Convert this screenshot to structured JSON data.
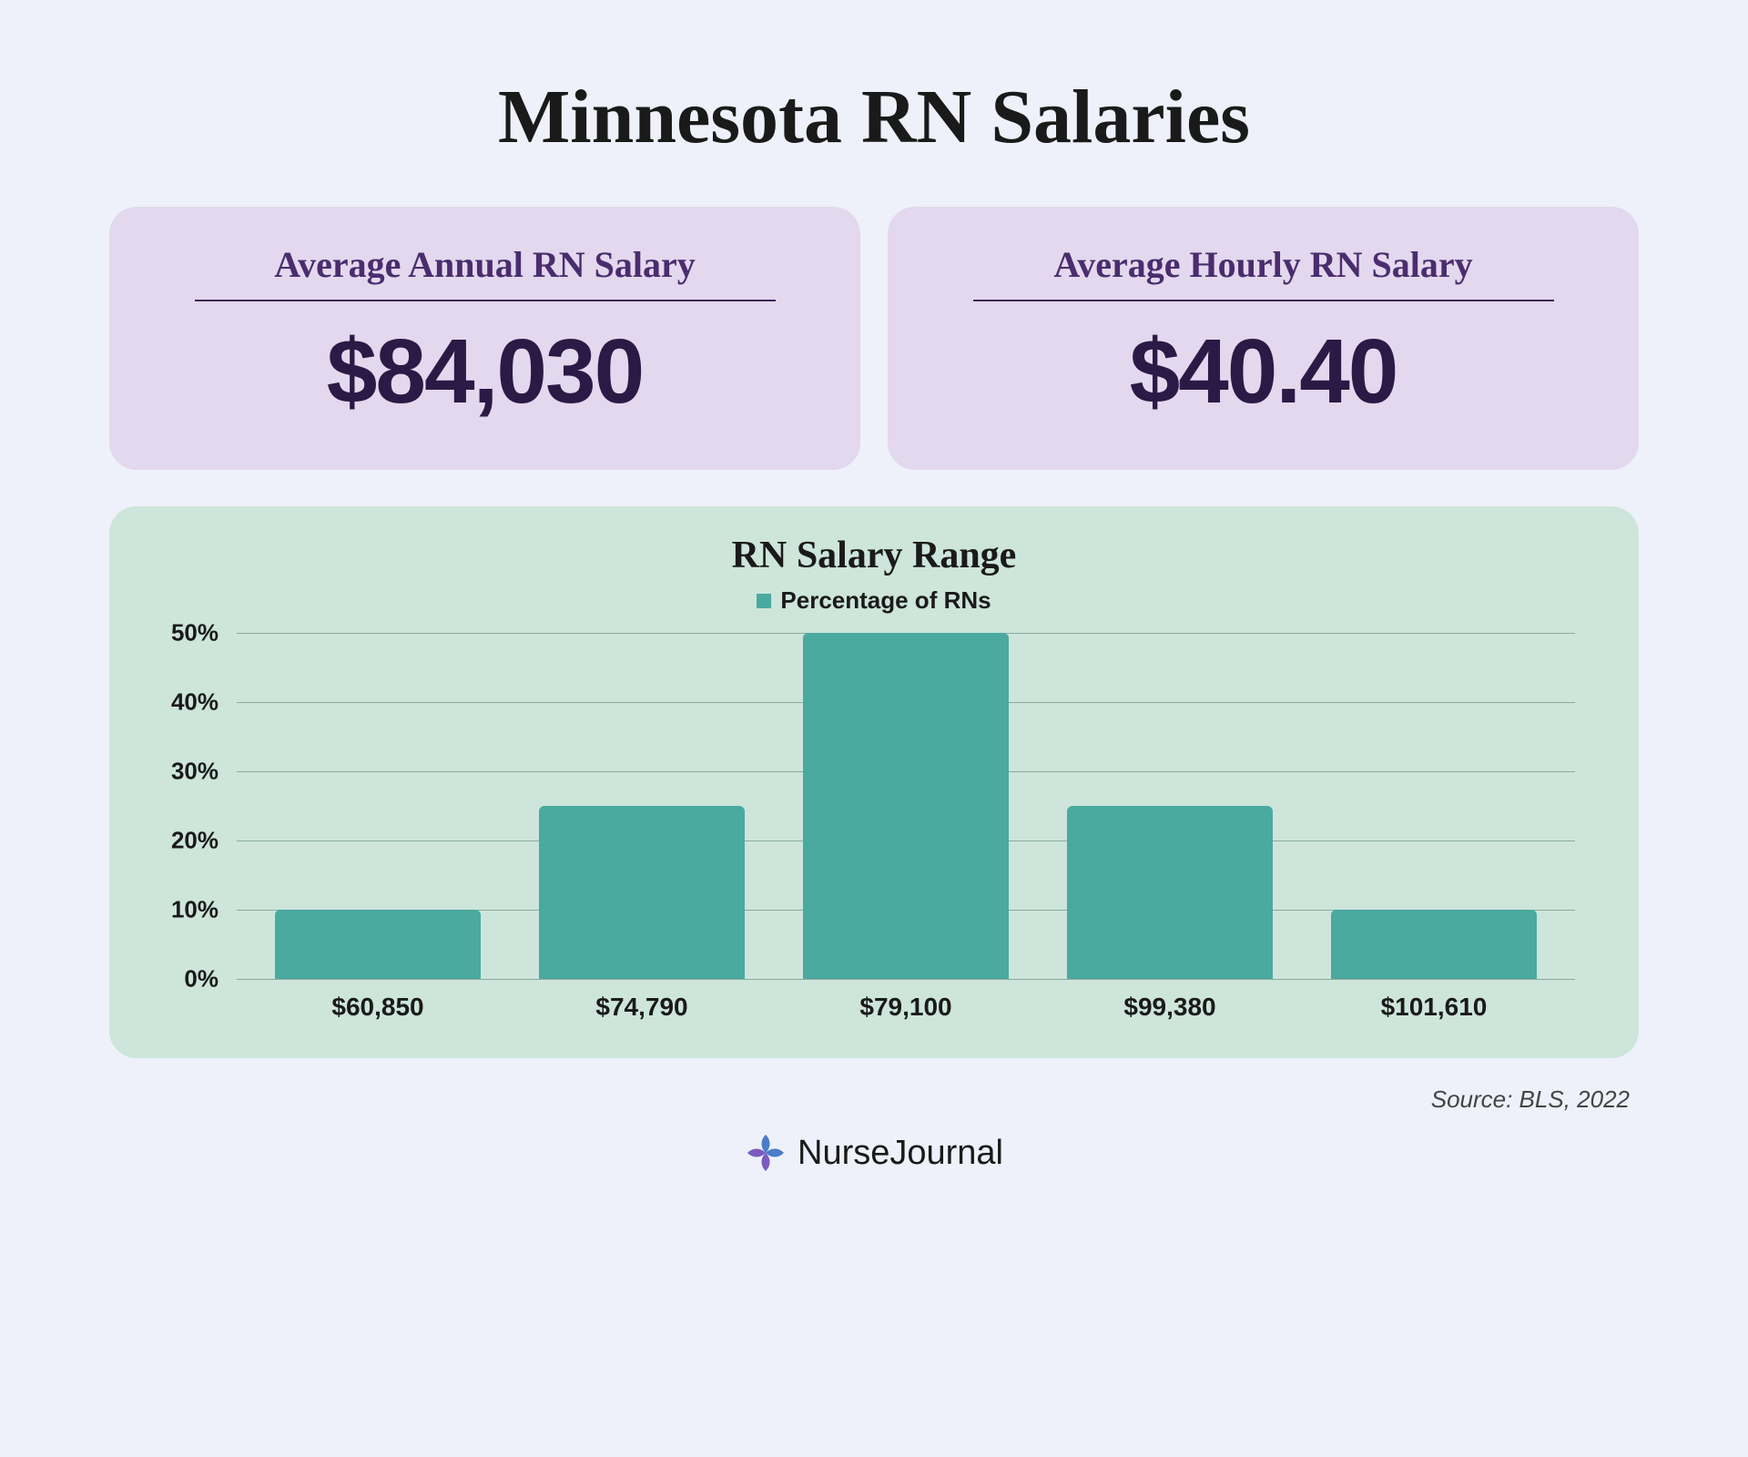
{
  "title": "Minnesota RN Salaries",
  "stats": [
    {
      "label": "Average Annual RN Salary",
      "value": "$84,030"
    },
    {
      "label": "Average Hourly RN Salary",
      "value": "$40.40"
    }
  ],
  "chart": {
    "type": "bar",
    "title": "RN Salary Range",
    "legend_label": "Percentage of RNs",
    "bar_color": "#4aa9a0",
    "background_color": "#cde5da",
    "grid_color": "#8aab9e",
    "ylim": [
      0,
      50
    ],
    "ytick_step": 10,
    "bar_width": 0.78,
    "categories": [
      "$60,850",
      "$74,790",
      "$79,100",
      "$99,380",
      "$101,610"
    ],
    "values": [
      10,
      25,
      50,
      25,
      10
    ],
    "title_fontsize": 42,
    "label_fontsize": 26,
    "xlabel_fontsize": 28
  },
  "stat_card": {
    "background_color": "#e3d8ee",
    "label_color": "#4a2d6e",
    "value_color": "#2a1a45"
  },
  "page_background": "#eef1fa",
  "source": "Source: BLS, 2022",
  "brand": "NurseJournal"
}
